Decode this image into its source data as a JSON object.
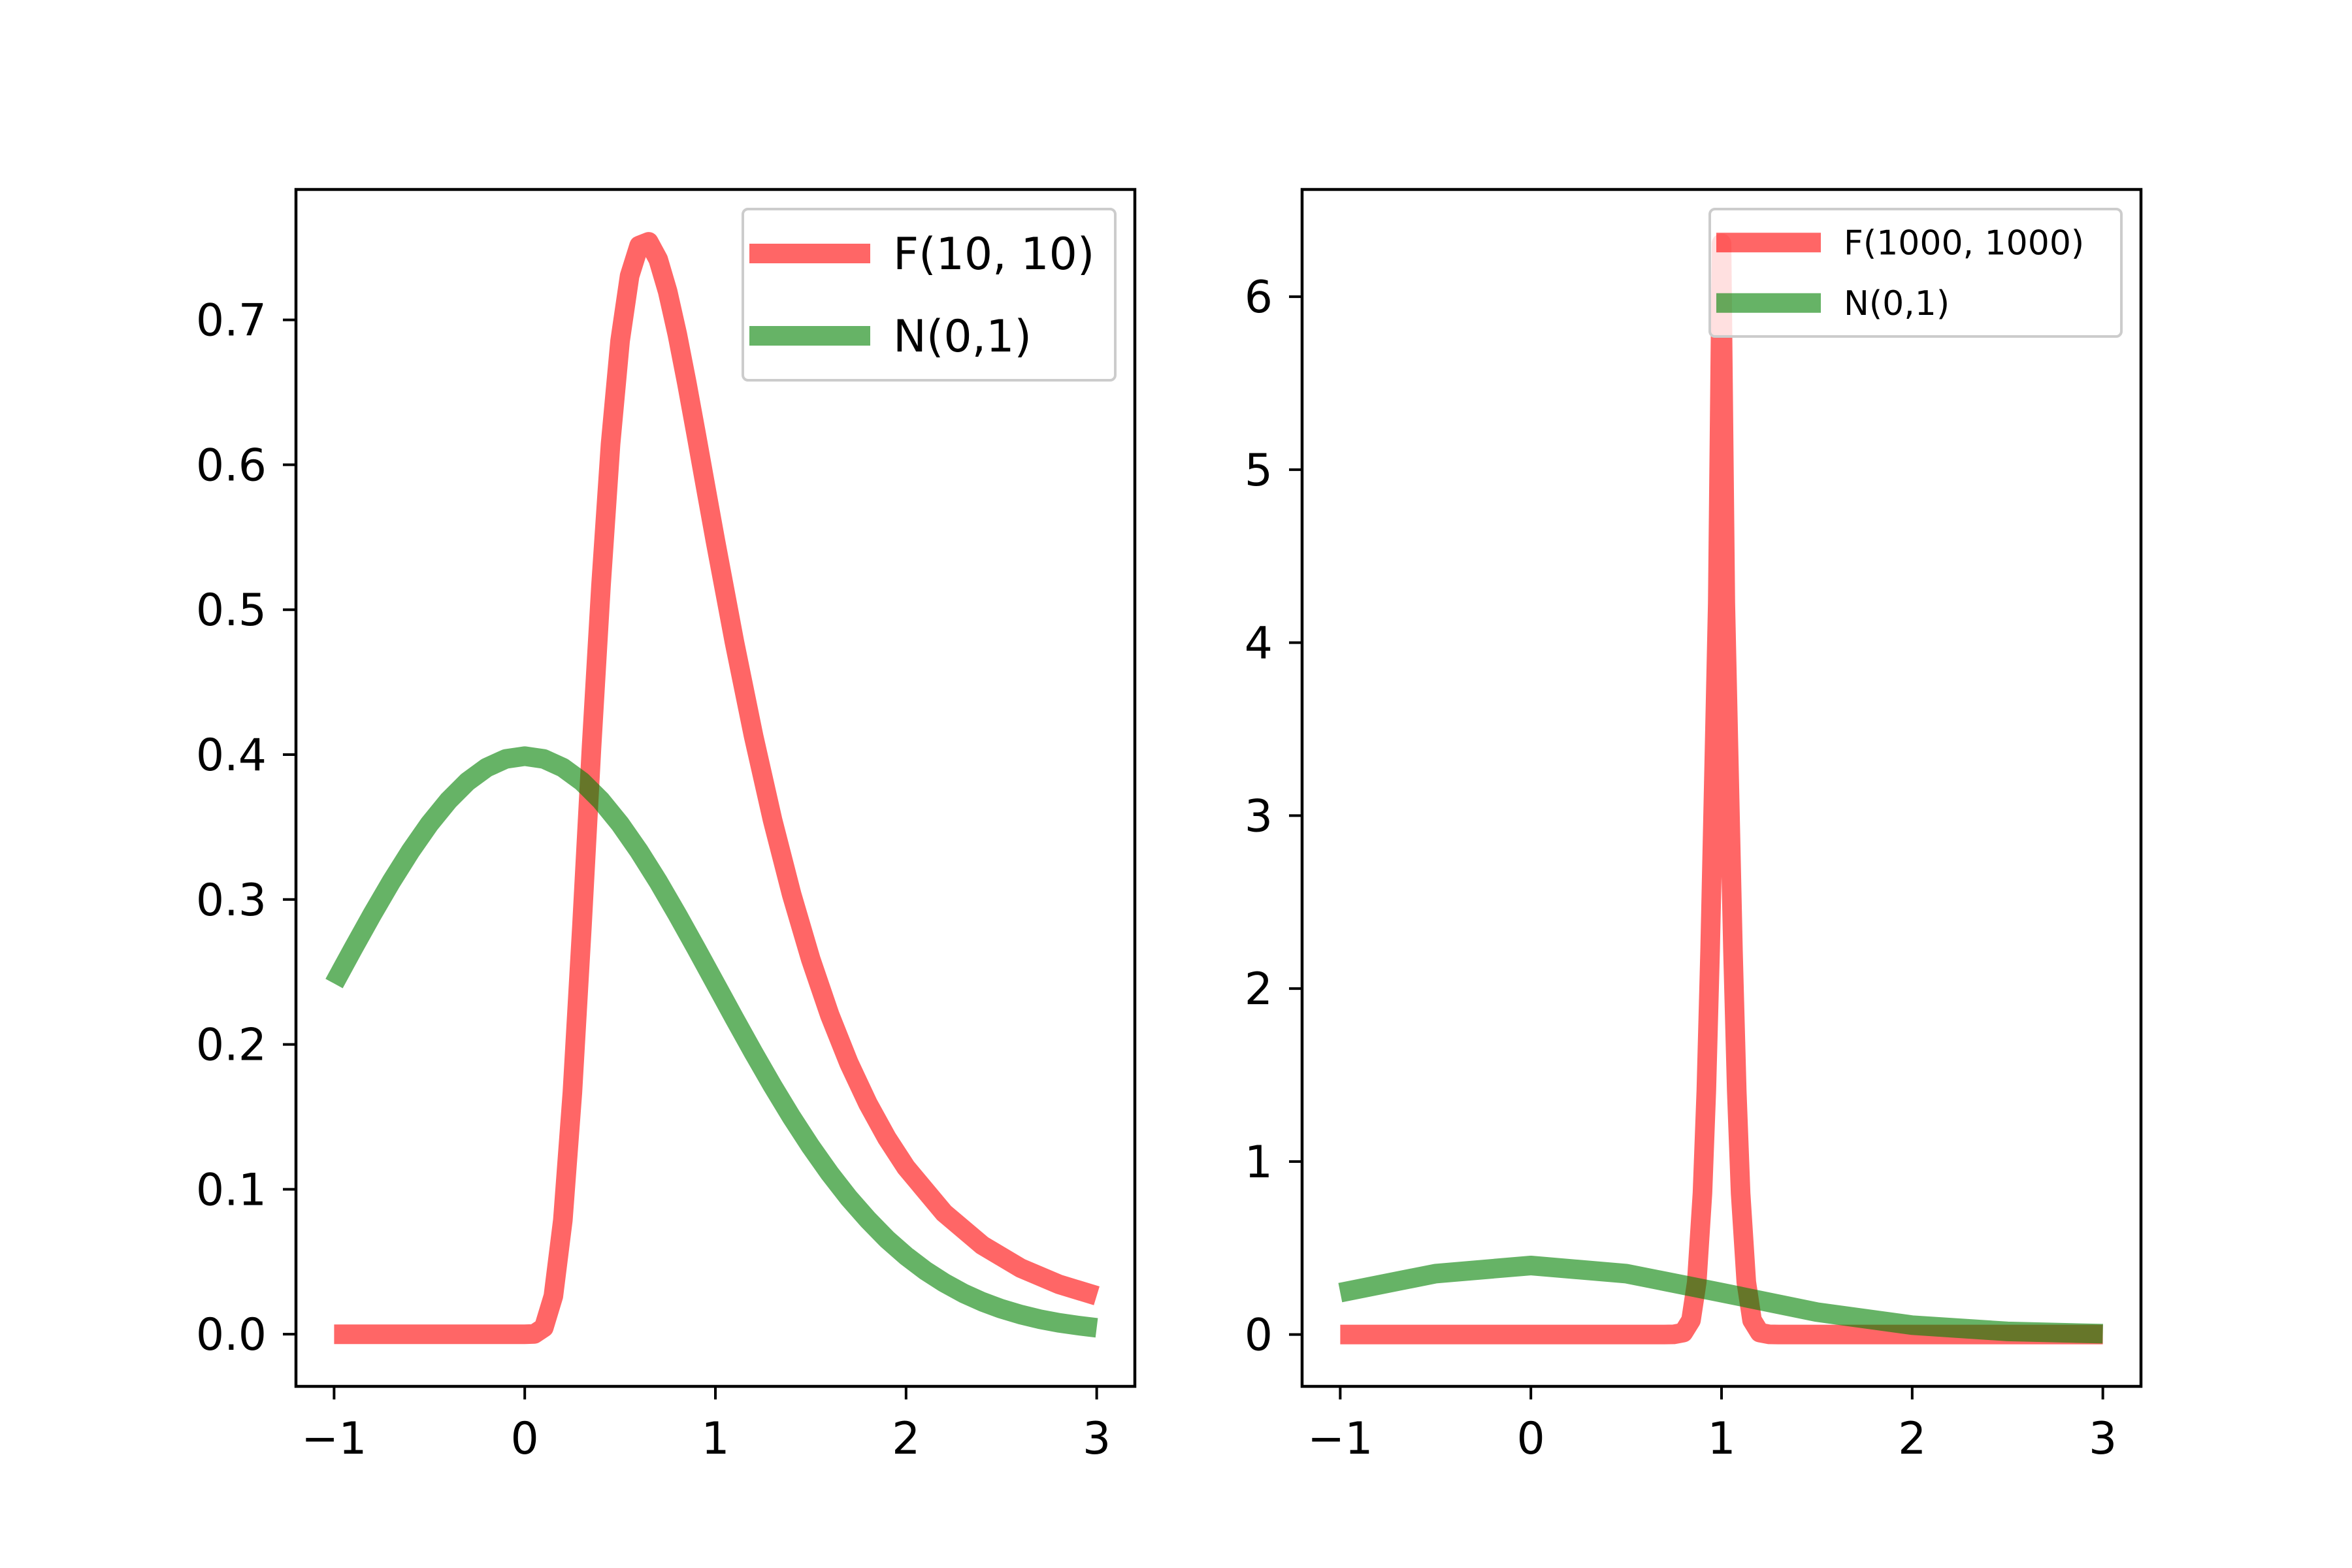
{
  "chart_data": [
    {
      "type": "line",
      "title": "",
      "xlabel": "",
      "ylabel": "",
      "xlim": [
        -1.2,
        3.2
      ],
      "ylim": [
        -0.036,
        0.79
      ],
      "x_ticks": [
        -1,
        0,
        1,
        2,
        3
      ],
      "x_tick_labels": [
        "−1",
        "0",
        "1",
        "2",
        "3"
      ],
      "y_ticks": [
        0.0,
        0.1,
        0.2,
        0.3,
        0.4,
        0.5,
        0.6,
        0.7
      ],
      "y_tick_labels": [
        "0.0",
        "0.1",
        "0.2",
        "0.3",
        "0.4",
        "0.5",
        "0.6",
        "0.7"
      ],
      "legend_position": "top-right",
      "series": [
        {
          "name": "F(10, 10)",
          "color": "#ff0000",
          "x": [
            -1.0,
            -0.8,
            -0.6,
            -0.4,
            -0.2,
            0.0,
            0.05,
            0.1,
            0.15,
            0.2,
            0.25,
            0.3,
            0.35,
            0.4,
            0.45,
            0.5,
            0.55,
            0.6,
            0.65,
            0.7,
            0.75,
            0.8,
            0.85,
            0.9,
            0.95,
            1.0,
            1.1,
            1.2,
            1.3,
            1.4,
            1.5,
            1.6,
            1.7,
            1.8,
            1.9,
            2.0,
            2.2,
            2.4,
            2.6,
            2.8,
            3.0
          ],
          "values": [
            0.0,
            0.0,
            0.0,
            0.0,
            0.0,
            0.0,
            0.0002,
            0.0046,
            0.0263,
            0.0787,
            0.1667,
            0.2814,
            0.4043,
            0.5167,
            0.6142,
            0.6855,
            0.7304,
            0.7513,
            0.7539,
            0.7417,
            0.7195,
            0.6902,
            0.6566,
            0.6206,
            0.5839,
            0.5475,
            0.4775,
            0.4129,
            0.3548,
            0.3035,
            0.2588,
            0.2202,
            0.1872,
            0.1591,
            0.1353,
            0.1151,
            0.0836,
            0.0614,
            0.0457,
            0.0345,
            0.0265
          ]
        },
        {
          "name": "N(0,1)",
          "color": "#008000",
          "x": [
            -1.0,
            -0.9,
            -0.8,
            -0.7,
            -0.6,
            -0.5,
            -0.4,
            -0.3,
            -0.2,
            -0.1,
            0.0,
            0.1,
            0.2,
            0.3,
            0.4,
            0.5,
            0.6,
            0.7,
            0.8,
            0.9,
            1.0,
            1.1,
            1.2,
            1.3,
            1.4,
            1.5,
            1.6,
            1.7,
            1.8,
            1.9,
            2.0,
            2.1,
            2.2,
            2.3,
            2.4,
            2.5,
            2.6,
            2.7,
            2.8,
            2.9,
            3.0
          ],
          "values": [
            0.242,
            0.2661,
            0.2897,
            0.3123,
            0.3332,
            0.3521,
            0.3683,
            0.3814,
            0.391,
            0.397,
            0.3989,
            0.397,
            0.391,
            0.3814,
            0.3683,
            0.3521,
            0.3332,
            0.3123,
            0.2897,
            0.2661,
            0.242,
            0.2179,
            0.1942,
            0.1714,
            0.1497,
            0.1295,
            0.1109,
            0.094,
            0.079,
            0.0656,
            0.054,
            0.044,
            0.0355,
            0.0283,
            0.0224,
            0.0175,
            0.0136,
            0.0104,
            0.0079,
            0.006,
            0.0044
          ]
        }
      ]
    },
    {
      "type": "line",
      "title": "",
      "xlabel": "",
      "ylabel": "",
      "xlim": [
        -1.2,
        3.2
      ],
      "ylim": [
        -0.3,
        6.62
      ],
      "x_ticks": [
        -1,
        0,
        1,
        2,
        3
      ],
      "x_tick_labels": [
        "−1",
        "0",
        "1",
        "2",
        "3"
      ],
      "y_ticks": [
        0,
        1,
        2,
        3,
        4,
        5,
        6
      ],
      "y_tick_labels": [
        "0",
        "1",
        "2",
        "3",
        "4",
        "5",
        "6"
      ],
      "legend_position": "top-right",
      "series": [
        {
          "name": "F(1000, 1000)",
          "color": "#ff0000",
          "x": [
            -1.0,
            -0.5,
            0.0,
            0.5,
            0.7,
            0.75,
            0.8,
            0.84,
            0.87,
            0.9,
            0.92,
            0.94,
            0.96,
            0.98,
            1.0,
            1.02,
            1.04,
            1.06,
            1.08,
            1.1,
            1.13,
            1.16,
            1.2,
            1.25,
            1.3,
            1.5,
            2.0,
            2.5,
            3.0
          ],
          "values": [
            0.0,
            0.0,
            0.0,
            0.0,
            0.0,
            0.0005,
            0.0111,
            0.0827,
            0.3034,
            0.8165,
            1.4072,
            2.2186,
            3.2128,
            4.2286,
            6.3082,
            4.2286,
            3.2128,
            2.2186,
            1.4072,
            0.8165,
            0.3034,
            0.0827,
            0.0111,
            0.0005,
            0.0,
            0.0,
            0.0,
            0.0,
            0.0
          ]
        },
        {
          "name": "N(0,1)",
          "color": "#008000",
          "x": [
            -1.0,
            -0.5,
            0.0,
            0.5,
            1.0,
            1.5,
            2.0,
            2.5,
            3.0
          ],
          "values": [
            0.242,
            0.3521,
            0.3989,
            0.3521,
            0.242,
            0.1295,
            0.054,
            0.0175,
            0.0044
          ]
        }
      ]
    }
  ]
}
